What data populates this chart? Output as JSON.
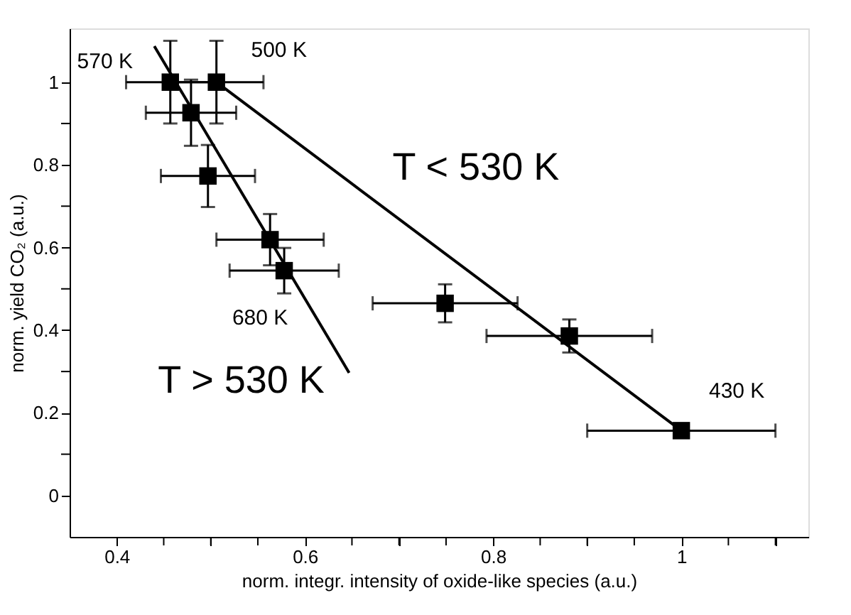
{
  "chart_data": {
    "type": "scatter",
    "xlabel": "norm. integr. intensity of oxide-like species (a.u.)",
    "ylabel": "norm. yield CO₂ (a.u.)",
    "series": [
      {
        "color": "#000000",
        "marker": "square",
        "x": [
          0.457,
          0.506,
          0.479,
          0.497,
          0.563,
          0.578,
          0.749,
          0.881,
          1.0
        ],
        "values": [
          1.0,
          1.0,
          0.926,
          0.773,
          0.619,
          0.544,
          0.465,
          0.386,
          0.157
        ],
        "errors": [
          0.1,
          0.1,
          0.08,
          0.075,
          0.062,
          0.055,
          0.046,
          0.04,
          null
        ],
        "xerrors": [
          0.047,
          0.05,
          0.048,
          0.05,
          0.057,
          0.058,
          0.077,
          0.088,
          0.1
        ]
      },
      {
        "type": "line",
        "color": "#000000",
        "x": [
          0.506,
          1.0
        ],
        "values": [
          1.0,
          0.157
        ]
      },
      {
        "type": "line",
        "color": "#000000",
        "x": [
          0.44,
          0.647
        ],
        "values": [
          1.087,
          0.297
        ]
      }
    ],
    "xlim": [
      0.35,
      1.135
    ],
    "ylim": [
      -0.1,
      1.13
    ],
    "xticks": [
      0.4,
      {
        "value": 0.45,
        "label": null
      },
      {
        "value": 0.5,
        "label": null
      },
      {
        "value": 0.55,
        "label": null
      },
      0.6,
      {
        "value": 0.65,
        "label": null
      },
      {
        "value": 0.7,
        "label": null
      },
      {
        "value": 0.75,
        "label": null
      },
      0.8,
      {
        "value": 0.85,
        "label": null
      },
      {
        "value": 0.9,
        "label": null
      },
      {
        "value": 0.95,
        "label": null
      },
      1,
      {
        "value": 1.05,
        "label": null
      },
      {
        "value": 1.1,
        "label": null
      }
    ],
    "yticks": [
      0,
      {
        "value": 0.1,
        "label": null
      },
      0.2,
      {
        "value": 0.3,
        "label": null
      },
      0.4,
      {
        "value": 0.5,
        "label": null
      },
      0.6,
      {
        "value": 0.7,
        "label": null
      },
      0.8,
      {
        "value": 0.9,
        "label": null
      },
      1
    ],
    "grid": false,
    "annotations": [
      {
        "text": "570 K",
        "x": 0.457,
        "y": 1.0
      },
      {
        "text": "500 K",
        "x": 0.506,
        "y": 1.0
      },
      {
        "text": "680 K",
        "x": 0.578,
        "y": 0.544
      },
      {
        "text": "430 K",
        "x": 1.0,
        "y": 0.157
      },
      {
        "text": "T < 530 K",
        "x": 0.753,
        "y": 0.5785
      },
      {
        "text": "T > 530 K",
        "x": 0.647,
        "y": 0.297
      }
    ]
  }
}
